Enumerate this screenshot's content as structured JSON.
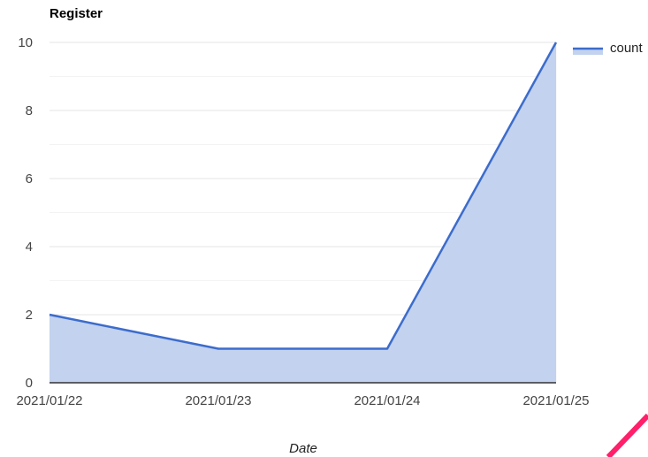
{
  "chart_data": {
    "type": "area",
    "title": "Register",
    "xlabel": "Date",
    "ylabel": "",
    "categories": [
      "2021/01/22",
      "2021/01/23",
      "2021/01/24",
      "2021/01/25"
    ],
    "series": [
      {
        "name": "count",
        "values": [
          2,
          1,
          1,
          10
        ]
      }
    ],
    "ylim": [
      0,
      10
    ],
    "yticks": [
      0,
      2,
      4,
      6,
      8,
      10
    ],
    "grid": true,
    "legend": "right",
    "colors": {
      "line": "#3c6ccc",
      "fill": "#c2d2ef",
      "gridline": "#e5e5e5",
      "minor_gridline": "#f3f3f3",
      "baseline": "#333333"
    }
  },
  "annotation": {
    "color": "#ff1f6b"
  }
}
